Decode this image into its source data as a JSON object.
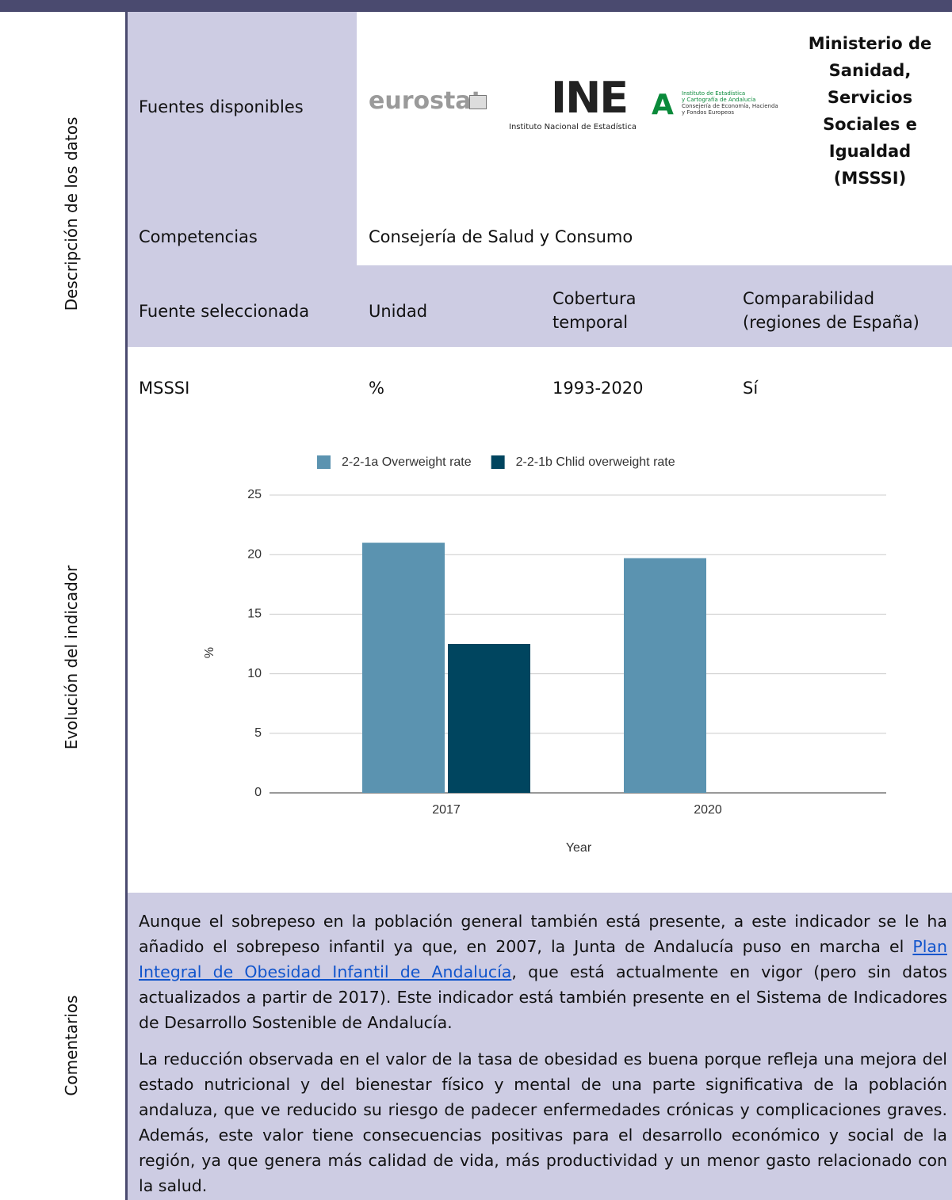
{
  "sections": {
    "description": "Descripción de los datos",
    "evolution": "Evolución del indicador",
    "comments": "Comentarios"
  },
  "sources": {
    "label": "Fuentes disponibles",
    "logos": {
      "eurostat": "eurostat",
      "ine": "INE",
      "ine_caption": "Instituto Nacional de Estadística",
      "ieca": [
        "Instituto de Estadística",
        "y Cartografía de Andalucía",
        "Consejería de Economía, Hacienda",
        "y Fondos Europeos"
      ]
    },
    "ministry": "Ministerio de Sanidad, Servicios Sociales e Igualdad (MSSSI)"
  },
  "competencias": {
    "label": "Competencias",
    "value": "Consejería de Salud y Consumo"
  },
  "table": {
    "header": [
      "Fuente seleccionada",
      "Unidad",
      "Cobertura temporal",
      "Comparabilidad (regiones de España)"
    ],
    "rows": [
      [
        "MSSSI",
        "%",
        "1993-2020",
        "Sí"
      ]
    ]
  },
  "chart_data": {
    "type": "bar",
    "categories": [
      "2017",
      "2020"
    ],
    "series": [
      {
        "name": "2-2-1a Overweight rate",
        "color": "#5b93b0",
        "values": [
          21.0,
          19.7
        ]
      },
      {
        "name": "2-2-1b Chlid overweight rate",
        "color": "#00455f",
        "values": [
          12.5,
          null
        ]
      }
    ],
    "xlabel": "Year",
    "ylabel": "%",
    "ylim": [
      0,
      25
    ],
    "yticks": [
      0,
      5,
      10,
      15,
      20,
      25
    ],
    "grid": true,
    "legend": "top"
  },
  "comments": {
    "p1": {
      "before": "Aunque el sobrepeso en la población general también está presente, a este indicador se le ha añadido el sobrepeso infantil ya que, en 2007, la Junta de Andalucía puso en marcha el ",
      "link": "Plan Integral de Obesidad Infantil de Andalucía",
      "after": ", que está actualmente en vigor (pero sin datos actualizados a partir de 2017). Este indicador está también presente en el Sistema de Indicadores de Desarrollo Sostenible de Andalucía."
    },
    "p2": "La reducción observada en el valor de la tasa de obesidad es buena porque refleja una mejora del estado nutricional y del bienestar físico y mental de una parte significativa de la población andaluza, que ve reducido su riesgo de padecer enfermedades crónicas y complicaciones graves. Además, este valor tiene consecuencias positivas para el desarrollo económico y social de la región, ya que genera más calidad de vida, más productividad y un menor gasto relacionado con la salud."
  }
}
